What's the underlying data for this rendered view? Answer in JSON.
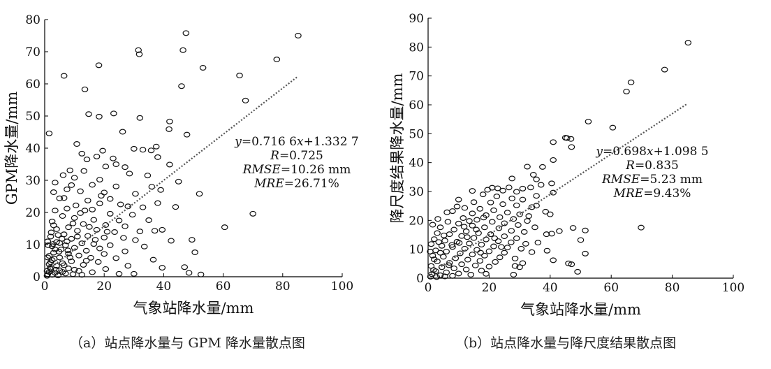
{
  "figure": {
    "caption_a": "（a）站点降水量与 GPM 降水量散点图",
    "caption_b": "（b）站点降水量与降尺度结果散点图"
  },
  "chart_data": [
    {
      "type": "scatter",
      "xlabel": "气象站降水量/mm",
      "ylabel": "GPM降水量/mm",
      "xlim": [
        0,
        100
      ],
      "ylim": [
        0,
        80
      ],
      "xticks": [
        0,
        20,
        40,
        60,
        80,
        100
      ],
      "yticks": [
        0,
        10,
        20,
        30,
        40,
        50,
        60,
        70,
        80
      ],
      "grid": false,
      "fit": {
        "slope": 0.7166,
        "intercept": 1.3327,
        "x_range": [
          0,
          85
        ]
      },
      "annotation": [
        "y=0.716 6x+1.332 7",
        "R=0.725",
        "RMSE=10.26 mm",
        "MRE=26.71%"
      ],
      "points": [
        [
          47.5,
          75.8
        ],
        [
          85.2,
          75.0
        ],
        [
          31.5,
          70.5
        ],
        [
          46.5,
          70.5
        ],
        [
          31.8,
          69.2
        ],
        [
          78,
          67.6
        ],
        [
          18.2,
          65.8
        ],
        [
          53.2,
          65.0
        ],
        [
          6.5,
          62.5
        ],
        [
          65.5,
          62.6
        ],
        [
          46,
          59.3
        ],
        [
          13.5,
          58.3
        ],
        [
          67.5,
          54.8
        ],
        [
          14.8,
          50.6
        ],
        [
          23.2,
          50.8
        ],
        [
          18.3,
          49.8
        ],
        [
          32,
          49.4
        ],
        [
          42,
          48.3
        ],
        [
          41.8,
          45.9
        ],
        [
          1.5,
          44.6
        ],
        [
          26.2,
          45.1
        ],
        [
          47.8,
          44.2
        ],
        [
          10.8,
          41.3
        ],
        [
          37.5,
          40.5
        ],
        [
          19.5,
          39.2
        ],
        [
          35.8,
          39.3
        ],
        [
          30,
          39.8
        ],
        [
          33,
          39.5
        ],
        [
          12.5,
          38.3
        ],
        [
          17.5,
          37.4
        ],
        [
          23,
          36.8
        ],
        [
          38,
          37.2
        ],
        [
          14.2,
          36.5
        ],
        [
          24,
          35
        ],
        [
          20.5,
          34.3
        ],
        [
          42,
          34.9
        ],
        [
          27,
          34.1
        ],
        [
          8.5,
          33.1
        ],
        [
          13.2,
          32.9
        ],
        [
          28.5,
          32.1
        ],
        [
          34.6,
          31.5
        ],
        [
          6.2,
          31.6
        ],
        [
          10,
          30.8
        ],
        [
          18.5,
          30.2
        ],
        [
          45,
          29.6
        ],
        [
          3.5,
          29.3
        ],
        [
          9,
          28.5
        ],
        [
          16,
          28.6
        ],
        [
          24,
          28.1
        ],
        [
          36,
          28
        ],
        [
          39,
          27
        ],
        [
          7.5,
          27.2
        ],
        [
          12,
          26.6
        ],
        [
          20,
          26.2
        ],
        [
          30.5,
          25.8
        ],
        [
          52,
          25.8
        ],
        [
          3,
          26.3
        ],
        [
          22,
          24.2
        ],
        [
          25.5,
          22.5
        ],
        [
          14.5,
          23.7
        ],
        [
          5,
          24.4
        ],
        [
          18.5,
          22.8
        ],
        [
          10.5,
          22.2
        ],
        [
          28,
          21.9
        ],
        [
          33,
          21.6
        ],
        [
          38,
          22.9
        ],
        [
          44,
          21.7
        ],
        [
          16,
          20.9
        ],
        [
          7.5,
          21.2
        ],
        [
          3.5,
          20.6
        ],
        [
          12,
          19.8
        ],
        [
          29.5,
          19.3
        ],
        [
          70,
          19.6
        ],
        [
          22,
          19.6
        ],
        [
          6,
          18.9
        ],
        [
          10,
          18.3
        ],
        [
          16.5,
          17.7
        ],
        [
          35,
          17.6
        ],
        [
          2.5,
          17.2
        ],
        [
          13,
          16.4
        ],
        [
          20.5,
          16.1
        ],
        [
          27,
          15.7
        ],
        [
          8,
          15.4
        ],
        [
          60.5,
          15.4
        ],
        [
          4,
          14.8
        ],
        [
          11,
          14.3
        ],
        [
          17.5,
          14.6
        ],
        [
          23.5,
          13.9
        ],
        [
          32,
          14.1
        ],
        [
          37,
          14.3
        ],
        [
          39.5,
          14.6
        ],
        [
          6.5,
          13.2
        ],
        [
          14.5,
          12.7
        ],
        [
          2,
          12.5
        ],
        [
          9,
          11.8
        ],
        [
          20,
          12.2
        ],
        [
          26.5,
          12.1
        ],
        [
          30.5,
          11.4
        ],
        [
          42.5,
          11.2
        ],
        [
          49.5,
          11.5
        ],
        [
          4,
          10.8
        ],
        [
          12.5,
          10.4
        ],
        [
          16.5,
          10.2
        ],
        [
          7,
          9.8
        ],
        [
          22,
          9.8
        ],
        [
          33.5,
          9.4
        ],
        [
          2.5,
          9.5
        ],
        [
          10,
          9
        ],
        [
          18.5,
          8.8
        ],
        [
          5.5,
          8.5
        ],
        [
          14,
          8.1
        ],
        [
          27,
          7.9
        ],
        [
          50.5,
          7.6
        ],
        [
          3,
          7.5
        ],
        [
          8,
          7.2
        ],
        [
          20,
          7.1
        ],
        [
          11.5,
          6.6
        ],
        [
          1.5,
          6.5
        ],
        [
          5,
          6
        ],
        [
          15.5,
          5.9
        ],
        [
          24,
          5.8
        ],
        [
          36.5,
          5.3
        ],
        [
          2.5,
          5.2
        ],
        [
          9,
          4.8
        ],
        [
          18,
          4.6
        ],
        [
          6,
          4.2
        ],
        [
          1.5,
          3.9
        ],
        [
          13,
          3.7
        ],
        [
          4,
          3.4
        ],
        [
          28,
          3.4
        ],
        [
          39.5,
          2.8
        ],
        [
          47,
          3
        ],
        [
          8,
          2.6
        ],
        [
          2,
          2.4
        ],
        [
          20.5,
          2.4
        ],
        [
          5,
          2
        ],
        [
          11.5,
          1.8
        ],
        [
          1.5,
          1.5
        ],
        [
          16,
          1.4
        ],
        [
          3.5,
          1.2
        ],
        [
          48.5,
          1.2
        ],
        [
          7,
          1
        ],
        [
          30,
          0.9
        ],
        [
          1,
          0.8
        ],
        [
          2.5,
          0.6
        ],
        [
          52.5,
          0.7
        ],
        [
          25,
          0.9
        ],
        [
          9.5,
          0.8
        ],
        [
          4.5,
          0.4
        ],
        [
          0.8,
          0.3
        ],
        [
          12.5,
          0.6
        ],
        [
          6,
          1.5
        ],
        [
          10,
          2.2
        ],
        [
          14,
          5
        ],
        [
          3,
          16
        ],
        [
          6.5,
          24.5
        ],
        [
          1,
          11
        ],
        [
          4.5,
          13
        ],
        [
          2,
          4.5
        ],
        [
          7.5,
          11
        ],
        [
          11,
          12.5
        ],
        [
          15,
          15.5
        ],
        [
          3.5,
          8.5
        ],
        [
          1.2,
          9.8
        ],
        [
          5,
          10.5
        ],
        [
          8.5,
          6
        ],
        [
          17,
          11.5
        ],
        [
          21,
          14
        ],
        [
          25,
          17.5
        ],
        [
          1.8,
          2.8
        ],
        [
          3.2,
          5.6
        ],
        [
          4.8,
          7.8
        ],
        [
          6.5,
          3.6
        ],
        [
          2.2,
          13.8
        ],
        [
          9.5,
          16.6
        ],
        [
          13.5,
          20.6
        ],
        [
          19,
          25.2
        ],
        [
          1,
          6
        ],
        [
          2.8,
          10.2
        ],
        [
          5.8,
          11.8
        ],
        [
          0.8,
          1.8
        ],
        [
          3.8,
          2.2
        ],
        [
          7.8,
          8.2
        ]
      ]
    },
    {
      "type": "scatter",
      "xlabel": "气象站降水量/mm",
      "ylabel": "降尺度结果降水量/mm",
      "xlim": [
        0,
        100
      ],
      "ylim": [
        0,
        90
      ],
      "xticks": [
        0,
        20,
        40,
        60,
        80,
        100
      ],
      "yticks": [
        0,
        10,
        20,
        30,
        40,
        50,
        60,
        70,
        80,
        90
      ],
      "grid": false,
      "fit": {
        "slope": 0.698,
        "intercept": 1.0985,
        "x_range": [
          0,
          85
        ]
      },
      "annotation": [
        "y=0.698x+1.098 5",
        "R=0.835",
        "RMSE=5.23 mm",
        "MRE=9.43%"
      ],
      "points": [
        [
          85.2,
          81.5
        ],
        [
          77.5,
          72.2
        ],
        [
          66.5,
          67.8
        ],
        [
          65,
          64.6
        ],
        [
          52.5,
          54.2
        ],
        [
          60.5,
          52.1
        ],
        [
          45.5,
          48.5
        ],
        [
          46.8,
          48.2
        ],
        [
          45,
          48.6
        ],
        [
          41,
          47.1
        ],
        [
          47,
          45.4
        ],
        [
          37.5,
          38.5
        ],
        [
          32.5,
          38.6
        ],
        [
          41,
          40.9
        ],
        [
          34.5,
          35.8
        ],
        [
          27.5,
          34.5
        ],
        [
          35.5,
          34.2
        ],
        [
          37,
          32.3
        ],
        [
          21,
          31.3
        ],
        [
          22.8,
          31.1
        ],
        [
          26.5,
          31.4
        ],
        [
          31,
          31
        ],
        [
          33.6,
          31.4
        ],
        [
          29,
          29.9
        ],
        [
          40.5,
          32.8
        ],
        [
          19.5,
          30.6
        ],
        [
          24.5,
          30.3
        ],
        [
          14.5,
          30.2
        ],
        [
          18,
          29
        ],
        [
          35.5,
          28.5
        ],
        [
          41,
          29.6
        ],
        [
          22.5,
          28.3
        ],
        [
          27.5,
          27.6
        ],
        [
          31,
          27.2
        ],
        [
          10,
          27.2
        ],
        [
          15,
          26.3
        ],
        [
          20.5,
          26.2
        ],
        [
          24.5,
          25.6
        ],
        [
          29,
          25.2
        ],
        [
          34,
          24.6
        ],
        [
          35.5,
          25.1
        ],
        [
          38.5,
          23
        ],
        [
          40,
          22.1
        ],
        [
          12,
          24.3
        ],
        [
          17,
          24
        ],
        [
          21.5,
          23.5
        ],
        [
          26,
          22.7
        ],
        [
          30,
          22.1
        ],
        [
          33,
          21.5
        ],
        [
          8,
          23.2
        ],
        [
          14.5,
          22.4
        ],
        [
          19,
          21.8
        ],
        [
          23.5,
          21.1
        ],
        [
          28,
          20.5
        ],
        [
          32.5,
          19.8
        ],
        [
          43,
          16.3
        ],
        [
          40.5,
          15.4
        ],
        [
          38.8,
          15.2
        ],
        [
          11.5,
          20.8
        ],
        [
          16,
          20.2
        ],
        [
          21,
          19.5
        ],
        [
          25,
          19
        ],
        [
          29.5,
          18.4
        ],
        [
          35,
          17.6
        ],
        [
          51.5,
          16.5
        ],
        [
          47.5,
          17.4
        ],
        [
          69.8,
          17.5
        ],
        [
          6.5,
          19.5
        ],
        [
          10,
          18.9
        ],
        [
          14.5,
          18.2
        ],
        [
          18.5,
          17.6
        ],
        [
          23.2,
          17.3
        ],
        [
          27.3,
          16.4
        ],
        [
          31.5,
          16
        ],
        [
          4,
          17.6
        ],
        [
          8.5,
          16.8
        ],
        [
          12.5,
          16.2
        ],
        [
          16.5,
          15.6
        ],
        [
          20.5,
          15.2
        ],
        [
          25,
          14.5
        ],
        [
          29,
          13.8
        ],
        [
          3,
          15.6
        ],
        [
          7,
          15.2
        ],
        [
          11,
          14.6
        ],
        [
          15,
          13.9
        ],
        [
          19,
          13.4
        ],
        [
          23,
          12.8
        ],
        [
          27.2,
          12.4
        ],
        [
          32,
          11.9
        ],
        [
          36,
          12.3
        ],
        [
          2,
          13.5
        ],
        [
          5.5,
          13
        ],
        [
          9.5,
          12.6
        ],
        [
          13.5,
          12
        ],
        [
          17.5,
          11.6
        ],
        [
          21.5,
          11
        ],
        [
          26,
          10.6
        ],
        [
          30.5,
          10.2
        ],
        [
          50,
          13.2
        ],
        [
          1,
          11.8
        ],
        [
          4.5,
          11.2
        ],
        [
          8,
          10.8
        ],
        [
          12,
          10.2
        ],
        [
          16,
          9.8
        ],
        [
          20,
          9.3
        ],
        [
          25,
          8.8
        ],
        [
          34,
          9
        ],
        [
          39,
          9.5
        ],
        [
          51.5,
          8.5
        ],
        [
          2.5,
          9.6
        ],
        [
          6,
          9.2
        ],
        [
          10.5,
          8.6
        ],
        [
          14.5,
          8.2
        ],
        [
          18.5,
          7.8
        ],
        [
          23.5,
          7.2
        ],
        [
          28.5,
          6.8
        ],
        [
          41,
          6.2
        ],
        [
          1.5,
          7.8
        ],
        [
          5,
          7.4
        ],
        [
          9,
          6.9
        ],
        [
          13,
          6.4
        ],
        [
          17,
          6
        ],
        [
          22,
          5.6
        ],
        [
          31,
          5.2
        ],
        [
          47,
          4.8
        ],
        [
          46,
          5.1
        ],
        [
          3,
          5.8
        ],
        [
          7,
          5.3
        ],
        [
          11,
          4.8
        ],
        [
          15.5,
          4.4
        ],
        [
          20,
          4
        ],
        [
          28.5,
          4.2
        ],
        [
          30,
          3.8
        ],
        [
          1,
          4.2
        ],
        [
          4.5,
          3.8
        ],
        [
          8.5,
          3.4
        ],
        [
          12.5,
          3
        ],
        [
          17.5,
          2.6
        ],
        [
          49,
          2.2
        ],
        [
          2.5,
          2.4
        ],
        [
          6,
          2
        ],
        [
          10,
          1.6
        ],
        [
          14,
          1.2
        ],
        [
          1.2,
          1.4
        ],
        [
          4,
          1
        ],
        [
          8,
          0.8
        ],
        [
          28,
          1.2
        ],
        [
          19,
          1.5
        ],
        [
          0.8,
          0.5
        ],
        [
          2.8,
          0.4
        ],
        [
          5.5,
          0.6
        ],
        [
          1.8,
          2.8
        ],
        [
          3.5,
          12.5
        ],
        [
          5.2,
          14.8
        ],
        [
          7.8,
          11.5
        ],
        [
          1.5,
          18.5
        ],
        [
          3.2,
          20.5
        ],
        [
          6.2,
          22.8
        ],
        [
          9.5,
          24.8
        ],
        [
          11.8,
          17.8
        ],
        [
          13.5,
          19.8
        ],
        [
          15.8,
          16.8
        ],
        [
          18.2,
          21
        ],
        [
          0.7,
          9.2
        ],
        [
          2,
          6.5
        ],
        [
          4,
          8.8
        ],
        [
          6.8,
          4.5
        ],
        [
          10.2,
          12.2
        ],
        [
          12.8,
          14.2
        ],
        [
          17.2,
          8.8
        ],
        [
          21.8,
          13.8
        ],
        [
          24,
          10.8
        ]
      ]
    }
  ]
}
